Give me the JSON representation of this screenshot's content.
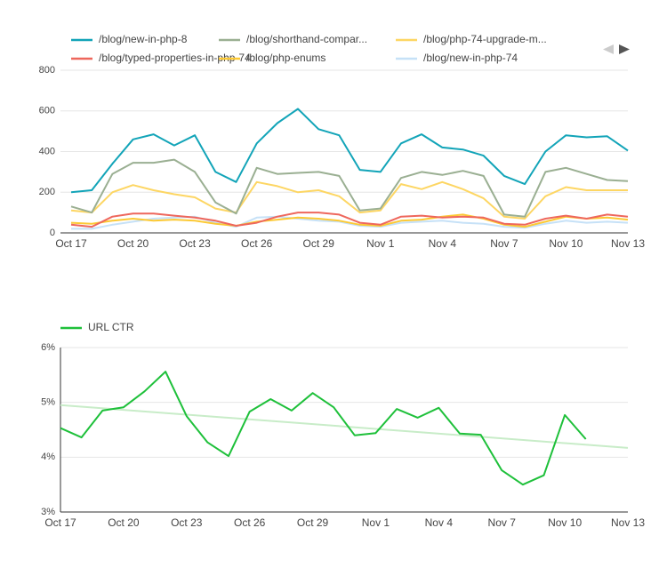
{
  "chart_data": [
    {
      "type": "line",
      "categories": [
        "Oct 17",
        null,
        null,
        "Oct 20",
        null,
        null,
        "Oct 23",
        null,
        null,
        "Oct 26",
        null,
        null,
        "Oct 29",
        null,
        null,
        "Nov 1",
        null,
        null,
        "Nov 4",
        null,
        null,
        "Nov 7",
        null,
        null,
        "Nov 10",
        null,
        null,
        "Nov 13"
      ],
      "ylim": [
        0,
        800
      ],
      "yticks": [
        0,
        200,
        400,
        600,
        800
      ],
      "grid": true,
      "series": [
        {
          "name": "/blog/new-in-php-8",
          "color": "#12a4b8",
          "values": [
            200,
            210,
            340,
            460,
            485,
            430,
            480,
            300,
            250,
            440,
            540,
            610,
            510,
            480,
            310,
            300,
            440,
            485,
            420,
            410,
            380,
            280,
            240,
            400,
            480,
            470,
            475,
            405
          ]
        },
        {
          "name": "/blog/shorthand-compar...",
          "color": "#9aaf92",
          "values": [
            130,
            100,
            290,
            345,
            345,
            360,
            300,
            150,
            95,
            320,
            290,
            295,
            300,
            280,
            110,
            120,
            270,
            300,
            285,
            305,
            280,
            90,
            80,
            300,
            320,
            290,
            260,
            255
          ]
        },
        {
          "name": "/blog/php-74-upgrade-m...",
          "color": "#fdd663",
          "values": [
            110,
            100,
            200,
            235,
            210,
            190,
            175,
            120,
            100,
            250,
            230,
            200,
            210,
            180,
            100,
            110,
            240,
            215,
            250,
            215,
            170,
            80,
            70,
            180,
            225,
            210,
            210,
            210
          ]
        },
        {
          "name": "/blog/typed-properties-in-php-74",
          "color": "#ee675c",
          "values": [
            40,
            30,
            80,
            95,
            95,
            85,
            75,
            60,
            35,
            50,
            80,
            100,
            100,
            90,
            50,
            40,
            80,
            85,
            75,
            80,
            75,
            45,
            40,
            70,
            85,
            70,
            90,
            80
          ]
        },
        {
          "name": "/blog/php-enums",
          "color": "#fcc934",
          "values": [
            50,
            45,
            60,
            70,
            60,
            65,
            60,
            45,
            35,
            55,
            65,
            75,
            70,
            60,
            40,
            35,
            60,
            65,
            80,
            90,
            70,
            40,
            30,
            55,
            80,
            70,
            75,
            65
          ]
        },
        {
          "name": "/blog/new-in-php-74",
          "color": "#c6e1f7",
          "values": [
            20,
            20,
            40,
            55,
            70,
            75,
            80,
            50,
            30,
            75,
            80,
            70,
            60,
            55,
            35,
            30,
            50,
            55,
            60,
            50,
            45,
            30,
            25,
            45,
            60,
            50,
            55,
            50
          ]
        }
      ]
    },
    {
      "type": "line",
      "categories": [
        "Oct 17",
        null,
        null,
        "Oct 20",
        null,
        null,
        "Oct 23",
        null,
        null,
        "Oct 26",
        null,
        null,
        "Oct 29",
        null,
        null,
        "Nov 1",
        null,
        null,
        "Nov 4",
        null,
        null,
        "Nov 7",
        null,
        null,
        "Nov 10",
        null,
        null,
        "Nov 13"
      ],
      "ylim": [
        3,
        6
      ],
      "yticks": [
        {
          "value": 3,
          "label": "3%"
        },
        {
          "value": 4,
          "label": "4%"
        },
        {
          "value": 5,
          "label": "5%"
        },
        {
          "value": 6,
          "label": "6%"
        }
      ],
      "grid": true,
      "series": [
        {
          "name": "URL CTR",
          "color": "#1ec03a",
          "values": [
            4.53,
            4.36,
            4.85,
            4.91,
            5.2,
            5.56,
            4.75,
            4.27,
            4.02,
            4.83,
            5.06,
            4.85,
            5.17,
            4.91,
            4.4,
            4.44,
            4.88,
            4.72,
            4.9,
            4.43,
            4.41,
            3.76,
            3.5,
            3.67,
            4.77,
            4.33,
            null,
            null
          ]
        }
      ],
      "trend": {
        "color": "#c8ecc8",
        "values": [
          4.95,
          4.17
        ]
      }
    }
  ]
}
